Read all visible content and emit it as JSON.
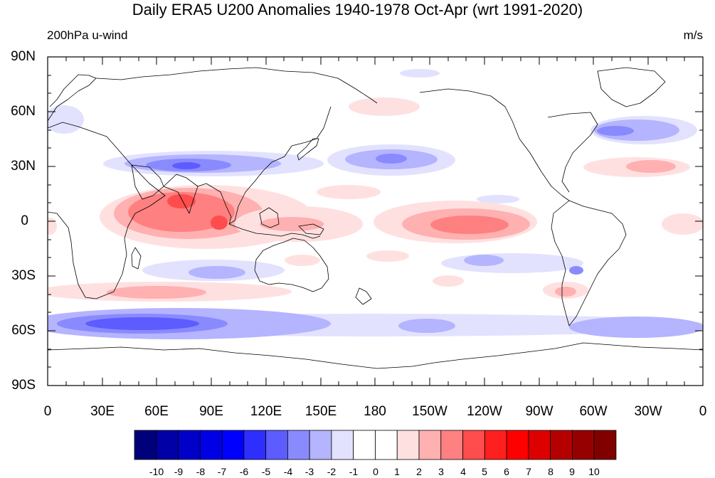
{
  "map": {
    "title": "Daily ERA5 U200 Anomalies 1940-1978 Oct-Apr (wrt 1991-2020)",
    "left_label": "200hPa u-wind",
    "right_label": "m/s",
    "lat_labels": [
      "90N",
      "60N",
      "30N",
      "0",
      "30S",
      "60S",
      "90S"
    ],
    "lon_labels": [
      "0",
      "30E",
      "60E",
      "90E",
      "120E",
      "150E",
      "180",
      "150W",
      "120W",
      "90W",
      "60W",
      "30W",
      "0"
    ],
    "projection": "cylindrical equidistant",
    "colorbar": {
      "levels": [
        "-10",
        "-9",
        "-8",
        "-7",
        "-6",
        "-5",
        "-4",
        "-3",
        "-2",
        "-1",
        "0",
        "1",
        "2",
        "3",
        "4",
        "5",
        "6",
        "7",
        "8",
        "9",
        "10"
      ],
      "colors": [
        "#00007a",
        "#0000a6",
        "#0000c8",
        "#0000e6",
        "#0000ff",
        "#2e2eff",
        "#5c5cff",
        "#8a8aff",
        "#b4b4ff",
        "#e2e2ff",
        "#ffffff",
        "#ffffff",
        "#ffe0e0",
        "#ffb0b0",
        "#ff8080",
        "#ff4c4c",
        "#ff1f1f",
        "#ff0000",
        "#dc0000",
        "#b40000",
        "#960000",
        "#800000"
      ]
    },
    "anomalies": [
      {
        "lon": 75,
        "lat": 10,
        "value": 5.5
      },
      {
        "lon": 93,
        "lat": 0,
        "value": 5.5
      },
      {
        "lon": 70,
        "lat": 5,
        "value": 4.5
      },
      {
        "lon": 130,
        "lat": 0,
        "value": 3
      },
      {
        "lon": 215,
        "lat": 0,
        "value": 3.5
      },
      {
        "lon": 330,
        "lat": 27,
        "value": 3
      },
      {
        "lon": 140,
        "lat": -17,
        "value": 1.5
      },
      {
        "lon": 200,
        "lat": -15,
        "value": 1.5
      },
      {
        "lon": 65,
        "lat": -40,
        "value": 2.5
      },
      {
        "lon": 305,
        "lat": -38,
        "value": 2
      },
      {
        "lon": 170,
        "lat": 62,
        "value": 1
      },
      {
        "lon": 350,
        "lat": 0,
        "value": 1
      },
      {
        "lon": 75,
        "lat": 30,
        "value": -4.5
      },
      {
        "lon": 180,
        "lat": 34,
        "value": -3
      },
      {
        "lon": 320,
        "lat": 50,
        "value": -4
      },
      {
        "lon": 80,
        "lat": -28,
        "value": -2.5
      },
      {
        "lon": 210,
        "lat": -22,
        "value": -2.5
      },
      {
        "lon": 55,
        "lat": -56,
        "value": -5.5
      },
      {
        "lon": 300,
        "lat": -60,
        "value": -2
      },
      {
        "lon": 165,
        "lat": -56,
        "value": -2
      },
      {
        "lon": 15,
        "lat": 62,
        "value": -2
      }
    ]
  }
}
